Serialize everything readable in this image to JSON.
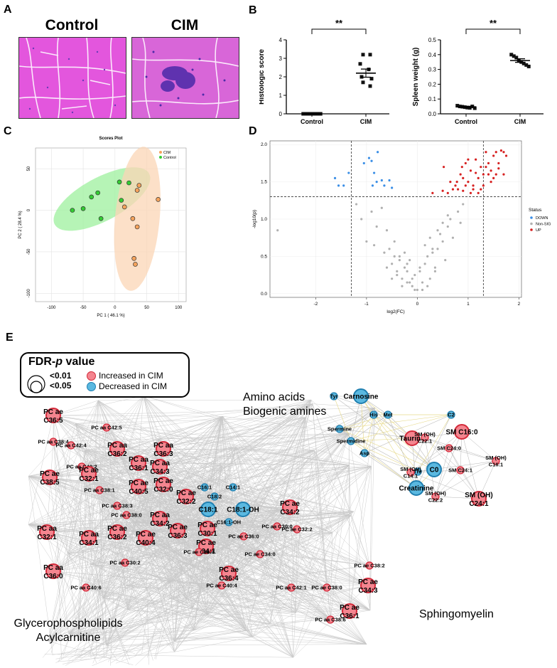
{
  "panels": {
    "a": "A",
    "b": "B",
    "c": "C",
    "d": "D",
    "e": "E"
  },
  "panel_a": {
    "left_title": "Control",
    "right_title": "CIM",
    "tissue_color": "#e04fd8",
    "infiltrate_color": "#4b2aa8"
  },
  "chart_data": [
    {
      "type": "scatter",
      "id": "histologic",
      "ylabel": "Histologic score",
      "categories": [
        "Control",
        "CIM"
      ],
      "ylim": [
        0,
        4
      ],
      "yticks": [
        "0",
        "1",
        "2",
        "3",
        "4"
      ],
      "significance": "**",
      "points": {
        "Control": [
          0,
          0,
          0,
          0,
          0,
          0,
          0,
          0
        ],
        "CIM": [
          3.2,
          3.2,
          2.7,
          2.4,
          2.0,
          1.9,
          1.7,
          1.5
        ]
      },
      "mean": {
        "Control": 0,
        "CIM": 2.2
      },
      "sem": {
        "Control": 0,
        "CIM": 0.22
      }
    },
    {
      "type": "scatter",
      "id": "spleen",
      "ylabel": "Spleen weight  (g)",
      "categories": [
        "Control",
        "CIM"
      ],
      "ylim": [
        0,
        0.5
      ],
      "yticks": [
        "0.0",
        "0.1",
        "0.2",
        "0.3",
        "0.4",
        "0.5"
      ],
      "significance": "**",
      "points": {
        "Control": [
          0.055,
          0.05,
          0.048,
          0.045,
          0.042,
          0.04,
          0.05,
          0.038
        ],
        "CIM": [
          0.4,
          0.39,
          0.38,
          0.36,
          0.35,
          0.34,
          0.33,
          0.32
        ]
      },
      "mean": {
        "Control": 0.047,
        "CIM": 0.36
      },
      "sem": {
        "Control": 0.004,
        "CIM": 0.012
      }
    },
    {
      "type": "scatter",
      "id": "pca",
      "title": "Scores Plot",
      "xlabel": "PC 1 ( 46.1 %)",
      "ylabel": "PC 2 ( 28.4 %)",
      "xlim": [
        -125,
        112
      ],
      "ylim": [
        -110,
        75
      ],
      "xticks": [
        -100,
        -50,
        0,
        50,
        100
      ],
      "yticks": [
        50,
        0,
        -50,
        -100
      ],
      "legend": [
        "CIM",
        "Control"
      ],
      "series": [
        {
          "name": "CIM",
          "color": "#f5a35c",
          "fill": "#fbd5b5",
          "x": [
            38,
            68,
            35,
            15,
            28,
            35,
            30,
            32
          ],
          "y": [
            30,
            13,
            24,
            4,
            -10,
            -20,
            -58,
            -65
          ]
        },
        {
          "name": "Control",
          "color": "#33cc33",
          "fill": "#9df09d",
          "x": [
            -67,
            -50,
            -37,
            -27,
            7,
            22,
            10,
            -22
          ],
          "y": [
            0,
            2,
            16,
            21,
            34,
            33,
            12,
            -10
          ]
        }
      ]
    },
    {
      "type": "scatter",
      "id": "volcano",
      "xlabel": "log2(FC)",
      "ylabel": "-log10(p)",
      "xlim": [
        -2.9,
        2.05
      ],
      "ylim": [
        -0.05,
        2.05
      ],
      "xticks": [
        -2,
        -1,
        0,
        1,
        2
      ],
      "yticks": [
        "0.0",
        "0.5",
        "1.0",
        "1.5",
        "2.0"
      ],
      "thresholds": {
        "x": [
          -1.3,
          1.3
        ],
        "y": 1.3
      },
      "legend_title": "Status",
      "series": [
        {
          "name": "DOWN",
          "color": "#3a8ee6",
          "x": [
            -1.62,
            -1.55,
            -1.45,
            -1.35,
            -1.05,
            -0.95,
            -0.9,
            -0.85,
            -0.78,
            -0.7,
            -0.65,
            -0.55,
            -0.5,
            -0.88,
            -0.8
          ],
          "y": [
            1.55,
            1.45,
            1.45,
            1.62,
            1.75,
            1.82,
            1.78,
            1.62,
            1.9,
            1.52,
            1.45,
            1.52,
            1.42,
            1.45,
            1.5
          ]
        },
        {
          "name": "Non-SIG",
          "color": "#b0b0b0",
          "x": [
            -2.75,
            -1.2,
            -1.1,
            -1.0,
            -0.9,
            -0.85,
            -0.8,
            -0.7,
            -0.6,
            -0.55,
            -0.5,
            -0.45,
            -0.4,
            -0.35,
            -0.3,
            -0.25,
            -0.2,
            -0.15,
            -0.1,
            -0.05,
            0.0,
            0.05,
            0.1,
            0.15,
            0.2,
            0.25,
            0.3,
            0.35,
            0.4,
            0.45,
            0.5,
            0.55,
            0.6,
            0.65,
            0.7,
            0.8,
            0.9,
            -0.6,
            -0.4,
            -0.3,
            -0.2,
            -0.1,
            0.1,
            0.2,
            0.3,
            -0.5,
            -0.35,
            -0.15,
            0.05,
            -0.25,
            -0.45,
            0.15,
            0.4,
            0.5,
            0.6,
            -0.05,
            0.25,
            -0.65,
            -0.2,
            0.35,
            0.85
          ],
          "y": [
            0.85,
            1.2,
            1.0,
            0.7,
            1.1,
            0.65,
            0.9,
            1.15,
            0.85,
            0.6,
            0.4,
            0.7,
            0.3,
            0.5,
            0.2,
            0.35,
            0.15,
            0.45,
            0.1,
            0.25,
            0.05,
            0.3,
            0.15,
            0.4,
            0.5,
            0.2,
            0.55,
            0.35,
            0.6,
            0.8,
            0.7,
            0.45,
            0.9,
            1.0,
            0.75,
            1.1,
            1.2,
            0.35,
            0.25,
            0.1,
            0.3,
            0.2,
            0.05,
            0.1,
            0.6,
            0.2,
            0.45,
            0.15,
            0.35,
            0.55,
            0.5,
            0.65,
            0.85,
            0.95,
            1.05,
            0.05,
            0.75,
            0.55,
            0.4,
            0.3,
            0.95
          ]
        },
        {
          "name": "UP",
          "color": "#d62020",
          "x": [
            0.3,
            0.5,
            0.52,
            0.7,
            0.75,
            0.78,
            0.85,
            0.9,
            0.95,
            1.0,
            1.05,
            1.1,
            1.15,
            1.2,
            1.25,
            1.3,
            1.35,
            1.4,
            1.45,
            1.5,
            1.55,
            1.6,
            1.65,
            1.7,
            1.75,
            0.6,
            0.8,
            0.95,
            1.0,
            1.1,
            1.2,
            1.3,
            1.4,
            1.5,
            1.6,
            1.7,
            0.65,
            0.9,
            1.05,
            1.25,
            1.45,
            1.55,
            0.88,
            1.15,
            1.35
          ],
          "y": [
            1.35,
            1.38,
            1.7,
            1.4,
            1.45,
            1.5,
            1.6,
            1.38,
            1.75,
            1.5,
            1.65,
            1.45,
            1.8,
            1.55,
            1.7,
            1.6,
            1.9,
            1.75,
            1.65,
            1.85,
            1.9,
            1.75,
            1.92,
            1.9,
            1.85,
            1.35,
            1.4,
            1.45,
            1.8,
            1.4,
            1.35,
            1.45,
            1.6,
            1.55,
            1.68,
            1.6,
            1.5,
            1.55,
            1.35,
            1.4,
            1.5,
            1.6,
            1.7,
            1.62,
            1.7
          ]
        }
      ]
    }
  ],
  "panel_e": {
    "legend_title": "FDR-",
    "legend_title_italic": "p",
    "legend_title_rest": " value",
    "p_small": "<0.01",
    "p_large": "<0.05",
    "increased": "Increased in CIM",
    "decreased": "Decreased in CIM",
    "increased_color": "#f4858f",
    "decreased_color": "#5ab8e0",
    "aa_title_1": "Amino acids",
    "aa_title_2": "Biogenic amines",
    "sm_title": "Sphingomyelin",
    "gp_title_1": "Glycerophospholipids",
    "gp_title_2": "Acylcarnitine",
    "nodes_gp": [
      {
        "l1": "PC ae",
        "l2": "C36:5",
        "up": true,
        "big": true
      },
      {
        "l1": "PC aa C42:5",
        "l2": "",
        "up": true,
        "big": false
      },
      {
        "l1": "PC aa C38:4",
        "l2": "",
        "up": true,
        "big": false
      },
      {
        "l1": "PC aa C42:4",
        "l2": "",
        "up": true,
        "big": false
      },
      {
        "l1": "PC aa",
        "l2": "C36:2",
        "up": true,
        "big": true
      },
      {
        "l1": "PC aa",
        "l2": "C36:3",
        "up": true,
        "big": true
      },
      {
        "l1": "PC aa",
        "l2": "C36:1",
        "up": true,
        "big": true
      },
      {
        "l1": "PC aa",
        "l2": "C34:3",
        "up": true,
        "big": true
      },
      {
        "l1": "PC ae",
        "l2": "C38:5",
        "up": true,
        "big": true
      },
      {
        "l1": "PC aa C40:2",
        "l2": "",
        "up": true,
        "big": false
      },
      {
        "l1": "PC ae",
        "l2": "C32:1",
        "up": true,
        "big": true
      },
      {
        "l1": "PC ae",
        "l2": "C40:5",
        "up": true,
        "big": true
      },
      {
        "l1": "PC ae",
        "l2": "C32:0",
        "up": true,
        "big": true
      },
      {
        "l1": "PC ae",
        "l2": "C32:2",
        "up": true,
        "big": true
      },
      {
        "l1": "PC aa C38:1",
        "l2": "",
        "up": true,
        "big": false
      },
      {
        "l1": "PC aa C38:3",
        "l2": "",
        "up": true,
        "big": false
      },
      {
        "l1": "PC aa C38:0",
        "l2": "",
        "up": true,
        "big": false
      },
      {
        "l1": "PC aa",
        "l2": "C34:2",
        "up": true,
        "big": true
      },
      {
        "l1": "PC ae",
        "l2": "C34:2",
        "up": true,
        "big": true
      },
      {
        "l1": "PC aa",
        "l2": "C32:1",
        "up": true,
        "big": true
      },
      {
        "l1": "PC aa",
        "l2": "C34:1",
        "up": true,
        "big": true
      },
      {
        "l1": "PC ae",
        "l2": "C36:2",
        "up": true,
        "big": true
      },
      {
        "l1": "PC ae",
        "l2": "C40:4",
        "up": true,
        "big": true
      },
      {
        "l1": "PC ae",
        "l2": "C36:3",
        "up": true,
        "big": true
      },
      {
        "l1": "PC ae",
        "l2": "C30:1",
        "up": true,
        "big": true
      },
      {
        "l1": "PC ae",
        "l2": "C34:1",
        "up": true,
        "big": true
      },
      {
        "l1": "PC aa C30:0",
        "l2": "",
        "up": true,
        "big": false
      },
      {
        "l1": "PC ae C32:2",
        "l2": "",
        "up": true,
        "big": false
      },
      {
        "l1": "PC ae C36:0",
        "l2": "",
        "up": true,
        "big": false
      },
      {
        "l1": "PC ae C38:4",
        "l2": "",
        "up": true,
        "big": false
      },
      {
        "l1": "PC ae C34:0",
        "l2": "",
        "up": true,
        "big": false
      },
      {
        "l1": "PC aa",
        "l2": "C36:0",
        "up": true,
        "big": true
      },
      {
        "l1": "PC aa C30:2",
        "l2": "",
        "up": true,
        "big": false
      },
      {
        "l1": "PC ae",
        "l2": "C36:4",
        "up": true,
        "big": true
      },
      {
        "l1": "PC ae C38:2",
        "l2": "",
        "up": true,
        "big": false
      },
      {
        "l1": "PC aa C40:6",
        "l2": "",
        "up": true,
        "big": false
      },
      {
        "l1": "PC ae C40:4",
        "l2": "",
        "up": true,
        "big": false
      },
      {
        "l1": "PC aa C42:1",
        "l2": "",
        "up": true,
        "big": false
      },
      {
        "l1": "PC ae C38:0",
        "l2": "",
        "up": true,
        "big": false
      },
      {
        "l1": "PC ae",
        "l2": "C34:3",
        "up": true,
        "big": true
      },
      {
        "l1": "PC ae",
        "l2": "C36:1",
        "up": true,
        "big": true
      },
      {
        "l1": "PC aa C38:6",
        "l2": "",
        "up": true,
        "big": false
      },
      {
        "l1": "C16:1",
        "l2": "",
        "up": false,
        "big": false
      },
      {
        "l1": "C14:1",
        "l2": "",
        "up": false,
        "big": false
      },
      {
        "l1": "C18:2",
        "l2": "",
        "up": false,
        "big": false
      },
      {
        "l1": "C18:1",
        "l2": "",
        "up": false,
        "big": true
      },
      {
        "l1": "C18:1-OH",
        "l2": "",
        "up": false,
        "big": true
      },
      {
        "l1": "C16:1-OH",
        "l2": "",
        "up": false,
        "big": false
      }
    ],
    "nodes_aa": [
      {
        "l1": "Tyr",
        "up": false,
        "big": false
      },
      {
        "l1": "Carnosine",
        "up": false,
        "big": true
      },
      {
        "l1": "His",
        "up": false,
        "big": false
      },
      {
        "l1": "Met",
        "up": false,
        "big": false
      },
      {
        "l1": "Spermine",
        "up": false,
        "big": false
      },
      {
        "l1": "Spermidine",
        "up": false,
        "big": false
      },
      {
        "l1": "Taurine",
        "up": true,
        "big": true
      },
      {
        "l1": "C2",
        "up": false,
        "big": false
      },
      {
        "l1": "Asp",
        "up": false,
        "big": false
      },
      {
        "l1": "Thr",
        "up": false,
        "big": false
      },
      {
        "l1": "C0",
        "up": false,
        "big": true
      },
      {
        "l1": "Creatinine",
        "up": false,
        "big": true
      }
    ],
    "nodes_sm": [
      {
        "l1": "SM C16:0",
        "l2": "",
        "up": true,
        "big": true
      },
      {
        "l1": "SM (OH)",
        "l2": "C22:1",
        "up": true,
        "big": false
      },
      {
        "l1": "SM C24:0",
        "l2": "",
        "up": true,
        "big": false
      },
      {
        "l1": "SM (OH)",
        "l2": "C16:1",
        "up": true,
        "big": false
      },
      {
        "l1": "SM C24:1",
        "l2": "",
        "up": true,
        "big": false
      },
      {
        "l1": "SM (OH)",
        "l2": "C14:1",
        "up": true,
        "big": false
      },
      {
        "l1": "SM (OH)",
        "l2": "C22:2",
        "up": true,
        "big": false
      },
      {
        "l1": "SM (OH)",
        "l2": "C24:1",
        "up": true,
        "big": true
      }
    ]
  }
}
